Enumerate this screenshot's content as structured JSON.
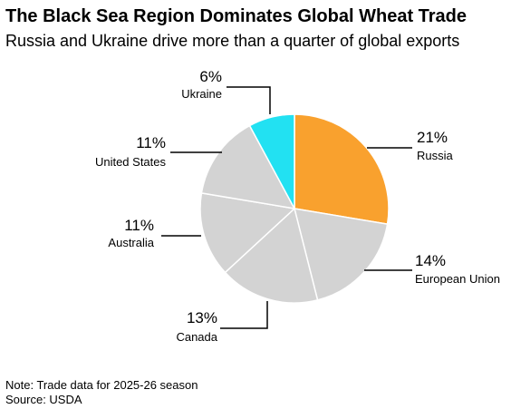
{
  "chart_data": {
    "type": "pie",
    "title": "The Black Sea Region Dominates Global Wheat Trade",
    "subtitle": "Russia and Ukraine drive more than a quarter of global exports",
    "categories": [
      "Russia",
      "European Union",
      "Canada",
      "Australia",
      "United States",
      "Ukraine"
    ],
    "values": [
      21,
      14,
      13,
      11,
      11,
      6
    ],
    "value_labels": [
      "21%",
      "14%",
      "13%",
      "11%",
      "11%",
      "6%"
    ],
    "colors": [
      "#f9a12e",
      "#d3d3d3",
      "#d3d3d3",
      "#d3d3d3",
      "#d3d3d3",
      "#22e1f2"
    ],
    "note": "Note: Trade data for 2025-26 season",
    "source": "Source: USDA"
  }
}
